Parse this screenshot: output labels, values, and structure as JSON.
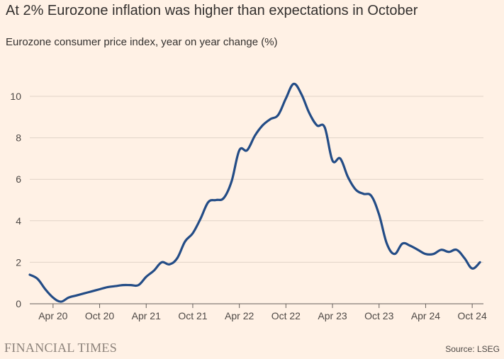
{
  "chart_data": {
    "type": "line",
    "title": "At 2% Eurozone inflation was higher than expectations in October",
    "subtitle": "Eurozone consumer price index, year on year change (%)",
    "ylabel": "",
    "xlabel": "",
    "ylim": [
      0,
      11
    ],
    "yticks": [
      0,
      2,
      4,
      6,
      8,
      10
    ],
    "x_tick_labels": [
      "Apr 20",
      "Oct 20",
      "Apr 21",
      "Oct 21",
      "Apr 22",
      "Oct 22",
      "Apr 23",
      "Oct 23",
      "Apr 24",
      "Oct 24"
    ],
    "x_tick_month_index": [
      3,
      9,
      15,
      21,
      27,
      33,
      39,
      45,
      51,
      57
    ],
    "grid": true,
    "series": [
      {
        "name": "Eurozone CPI y/y",
        "color": "#234C86",
        "start": "Jan 20",
        "values": [
          1.4,
          1.2,
          0.7,
          0.3,
          0.1,
          0.3,
          0.4,
          0.5,
          0.6,
          0.7,
          0.8,
          0.85,
          0.9,
          0.9,
          0.9,
          1.3,
          1.6,
          2.0,
          1.9,
          2.2,
          3.0,
          3.4,
          4.1,
          4.9,
          5.0,
          5.1,
          5.9,
          7.4,
          7.4,
          8.1,
          8.6,
          8.9,
          9.1,
          9.9,
          10.6,
          10.1,
          9.2,
          8.6,
          8.5,
          6.9,
          7.0,
          6.1,
          5.5,
          5.3,
          5.2,
          4.3,
          2.9,
          2.4,
          2.9,
          2.8,
          2.6,
          2.4,
          2.4,
          2.6,
          2.5,
          2.6,
          2.2,
          1.7,
          2.0
        ]
      }
    ]
  },
  "footer": {
    "brand": "FINANCIAL TIMES",
    "source": "Source: LSEG"
  }
}
